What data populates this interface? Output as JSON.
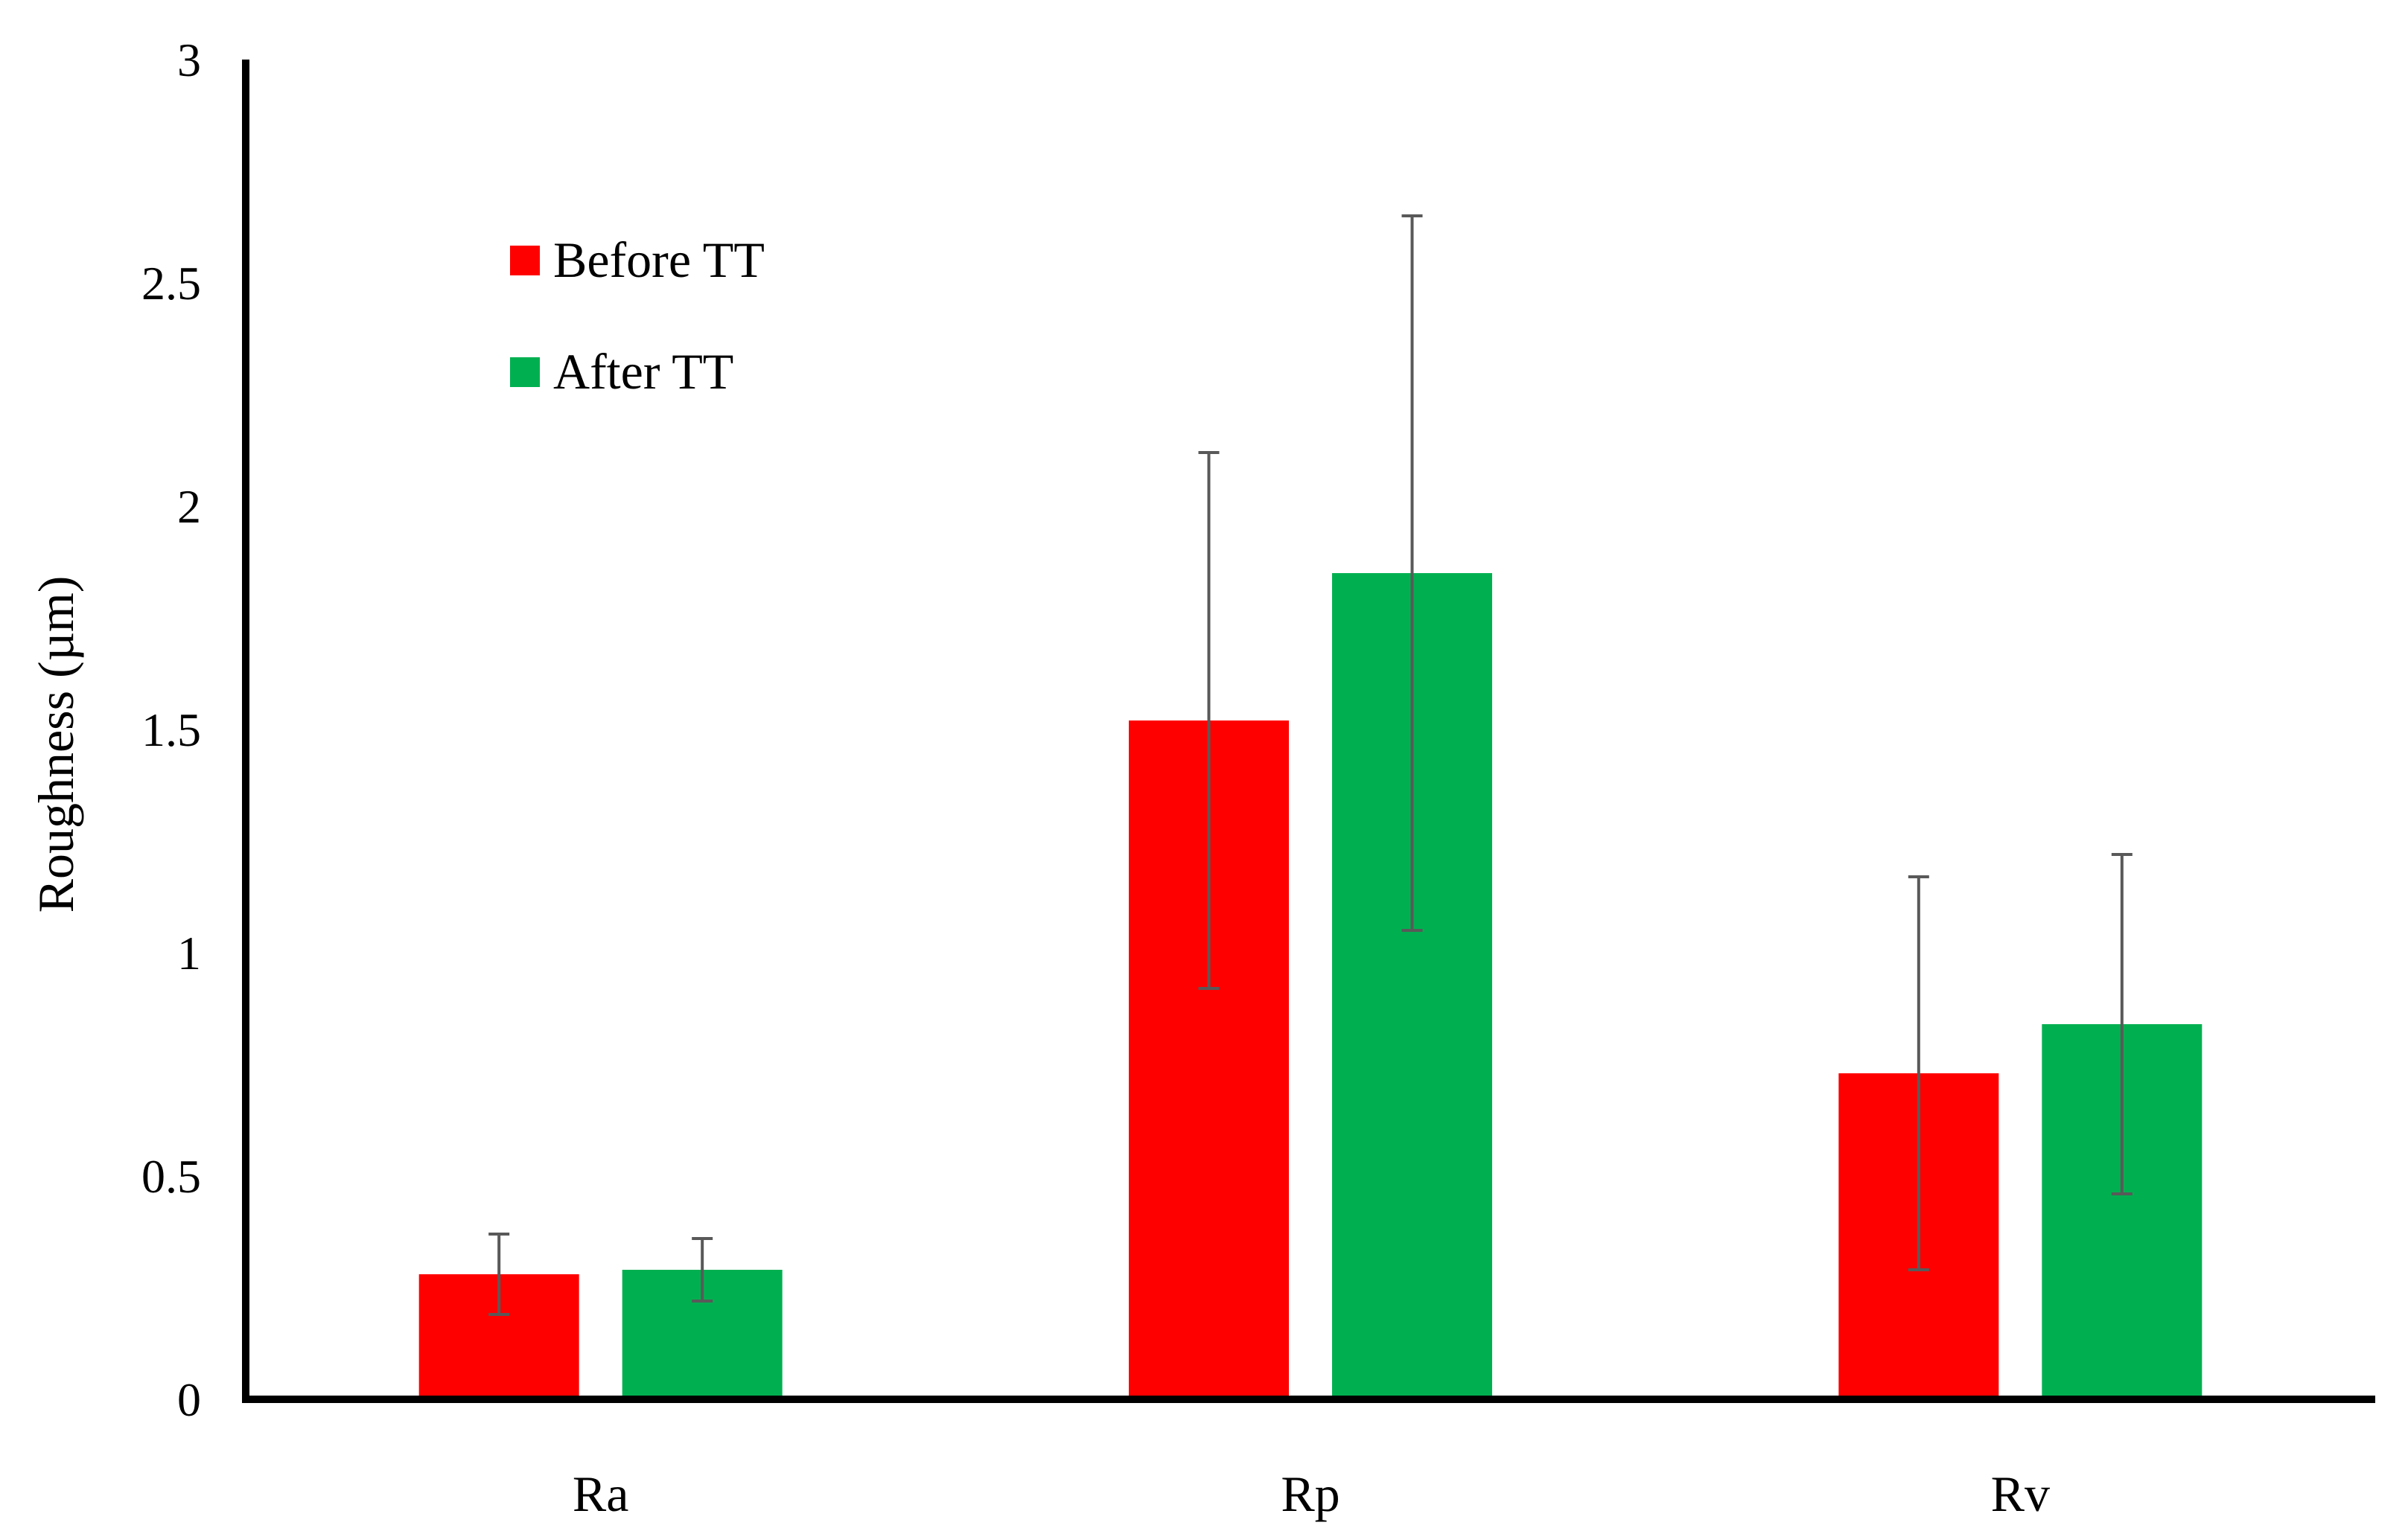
{
  "chart_data": {
    "type": "bar",
    "title": "",
    "xlabel": "",
    "ylabel": "Roughness (µm)",
    "categories": [
      "Ra",
      "Rp",
      "Rv"
    ],
    "ylim": [
      0,
      3
    ],
    "yticks": [
      0,
      0.5,
      1,
      1.5,
      2,
      2.5,
      3
    ],
    "ytick_labels": [
      "0",
      "0.5",
      "1",
      "1.5",
      "2",
      "2.5",
      "3"
    ],
    "grid": false,
    "legend_position": "top-left",
    "series": [
      {
        "name": "Before TT",
        "color": "#ff0000",
        "values": [
          0.28,
          1.52,
          0.73
        ],
        "error_low": [
          0.19,
          0.92,
          0.29
        ],
        "error_high": [
          0.37,
          2.12,
          1.17
        ]
      },
      {
        "name": "After TT",
        "color": "#00b050",
        "values": [
          0.29,
          1.85,
          0.84
        ],
        "error_low": [
          0.22,
          1.05,
          0.46
        ],
        "error_high": [
          0.36,
          2.65,
          1.22
        ]
      }
    ]
  }
}
